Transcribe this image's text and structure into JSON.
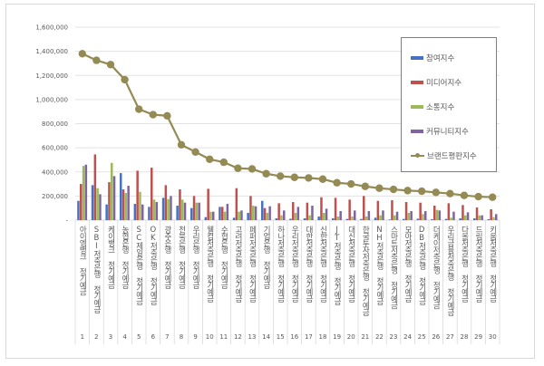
{
  "chart_data": {
    "type": "bar+line",
    "title": "",
    "xlabel": "",
    "ylabel": "",
    "ylim": [
      0,
      1600000
    ],
    "yticks": [
      "-",
      "200,000",
      "400,000",
      "600,000",
      "800,000",
      "1,000,000",
      "1,200,000",
      "1,400,000",
      "1,600,000"
    ],
    "grid": true,
    "legend_position": "right-inset",
    "x": [
      1,
      2,
      3,
      4,
      5,
      6,
      7,
      8,
      9,
      10,
      11,
      12,
      13,
      14,
      15,
      16,
      17,
      18,
      19,
      20,
      21,
      22,
      23,
      24,
      25,
      26,
      27,
      28,
      29,
      30
    ],
    "categories": [
      "아이엠뱅크 정기예금",
      "SBI저축은행 정기예금",
      "케이뱅크 정기예금",
      "농협은행 정기예금",
      "SC제일은행 정기예금",
      "OK저축은행 정기예금",
      "광주은행 정기예금",
      "전북은행 정기예금",
      "우리은행 정기예금",
      "웰컴저축은행 정기예금",
      "수협은행 정기예금",
      "고려저축은행 정기예금",
      "페퍼저축은행 정기예금",
      "기업은행 정기예금",
      "하나저축은행 정기예금",
      "우리저축은행 정기예금",
      "대한저축은행 정기예금",
      "신한저축은행 정기예금",
      "JT저축은행 정기예금",
      "대신저축은행 정기예금",
      "한국투자저축은행 정기예금",
      "NH저축은행 정기예금",
      "스마트저축은행 정기예금",
      "모아저축은행 정기예금",
      "DB저축은행 정기예금",
      "더케이저축은행 정기예금",
      "우리금융저축은행 정기예금",
      "다올저축은행 정기예금",
      "드림저축은행 정기예금",
      "키움저축은행 정기예금"
    ],
    "series": [
      {
        "name": "참여지수",
        "type": "bar",
        "color": "#4472c4",
        "values": [
          160000,
          290000,
          130000,
          390000,
          135000,
          110000,
          185000,
          120000,
          100000,
          25000,
          110000,
          20000,
          60000,
          160000,
          15000,
          12000,
          15000,
          30000,
          15000,
          10000,
          10000,
          20000,
          5000,
          10000,
          12000,
          8000,
          10000,
          15000,
          15000,
          8000
        ]
      },
      {
        "name": "미디어지수",
        "type": "bar",
        "color": "#c0504d",
        "values": [
          300000,
          545000,
          315000,
          255000,
          410000,
          435000,
          290000,
          255000,
          200000,
          260000,
          110000,
          265000,
          200000,
          100000,
          140000,
          150000,
          145000,
          190000,
          185000,
          170000,
          200000,
          160000,
          165000,
          150000,
          145000,
          120000,
          140000,
          125000,
          105000,
          90000
        ]
      },
      {
        "name": "소통지수",
        "type": "bar",
        "color": "#9bbb59",
        "values": [
          450000,
          265000,
          475000,
          225000,
          235000,
          170000,
          175000,
          170000,
          145000,
          70000,
          70000,
          70000,
          120000,
          60000,
          40000,
          60000,
          40000,
          60000,
          30000,
          30000,
          30000,
          40000,
          40000,
          60000,
          50000,
          85000,
          20000,
          40000,
          40000,
          25000
        ]
      },
      {
        "name": "커뮤니티지수",
        "type": "bar",
        "color": "#8064a2",
        "values": [
          460000,
          215000,
          365000,
          285000,
          130000,
          150000,
          200000,
          145000,
          145000,
          70000,
          135000,
          80000,
          115000,
          115000,
          80000,
          110000,
          120000,
          95000,
          75000,
          80000,
          75000,
          80000,
          70000,
          75000,
          75000,
          80000,
          70000,
          65000,
          40000,
          50000
        ]
      },
      {
        "name": "브랜드평판지수",
        "type": "line",
        "color": "#948a54",
        "values": [
          1380000,
          1325000,
          1290000,
          1165000,
          920000,
          875000,
          865000,
          625000,
          565000,
          505000,
          480000,
          430000,
          425000,
          385000,
          365000,
          355000,
          350000,
          340000,
          310000,
          300000,
          280000,
          265000,
          255000,
          245000,
          240000,
          230000,
          220000,
          205000,
          195000,
          190000
        ]
      }
    ]
  },
  "legend": {
    "items": [
      {
        "label": "참여지수",
        "color": "#4472c4",
        "kind": "bar"
      },
      {
        "label": "미디어지수",
        "color": "#c0504d",
        "kind": "bar"
      },
      {
        "label": "소통지수",
        "color": "#9bbb59",
        "kind": "bar"
      },
      {
        "label": "커뮤니티지수",
        "color": "#8064a2",
        "kind": "bar"
      },
      {
        "label": "브랜드평판지수",
        "color": "#948a54",
        "kind": "line"
      }
    ]
  }
}
